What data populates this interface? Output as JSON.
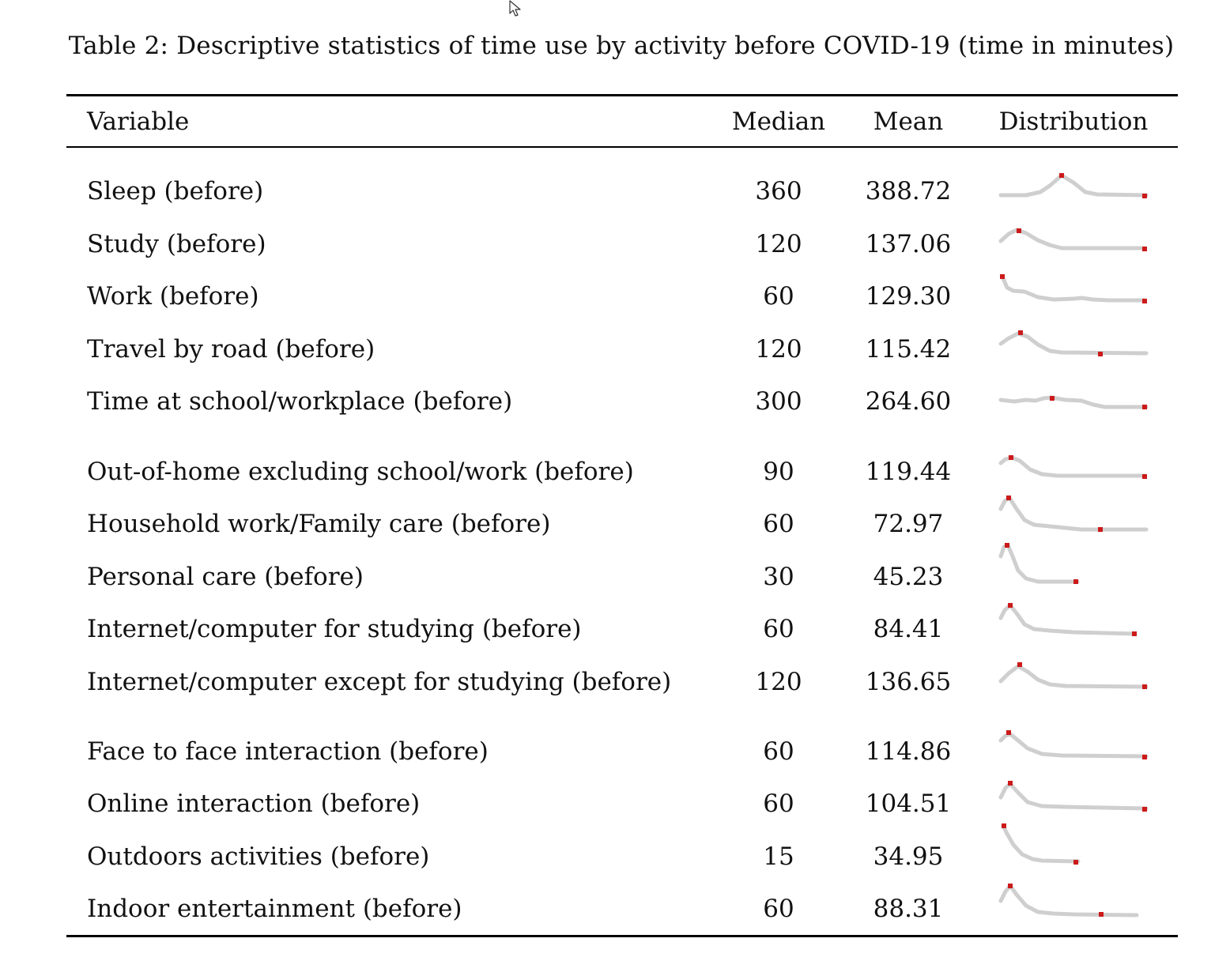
{
  "caption": "Table 2: Descriptive statistics of time use by activity before COVID-19 (time in minutes)",
  "columns": {
    "variable": "Variable",
    "median": "Median",
    "mean": "Mean",
    "distribution": "Distribution"
  },
  "rows": [
    {
      "label": "Sleep (before)",
      "median": "360",
      "mean": "388.72"
    },
    {
      "label": "Study (before)",
      "median": "120",
      "mean": "137.06"
    },
    {
      "label": "Work (before)",
      "median": "60",
      "mean": "129.30"
    },
    {
      "label": "Travel by road (before)",
      "median": "120",
      "mean": "115.42"
    },
    {
      "label": "Time at school/workplace (before)",
      "median": "300",
      "mean": "264.60"
    },
    {
      "label": "Out-of-home excluding school/work (before)",
      "median": "90",
      "mean": "119.44"
    },
    {
      "label": "Household work/Family care (before)",
      "median": "60",
      "mean": "72.97"
    },
    {
      "label": "Personal care (before)",
      "median": "30",
      "mean": "45.23"
    },
    {
      "label": "Internet/computer for studying (before)",
      "median": "60",
      "mean": "84.41"
    },
    {
      "label": "Internet/computer except for studying (before)",
      "median": "120",
      "mean": "136.65"
    },
    {
      "label": "Face to face interaction (before)",
      "median": "60",
      "mean": "114.86"
    },
    {
      "label": "Online interaction (before)",
      "median": "60",
      "mean": "104.51"
    },
    {
      "label": "Outdoors activities (before)",
      "median": "15",
      "mean": "34.95"
    },
    {
      "label": "Indoor entertainment (before)",
      "median": "60",
      "mean": "88.31"
    }
  ],
  "colors": {
    "sparkline": "#cfcfcf",
    "marker": "#cc1a1a"
  }
}
